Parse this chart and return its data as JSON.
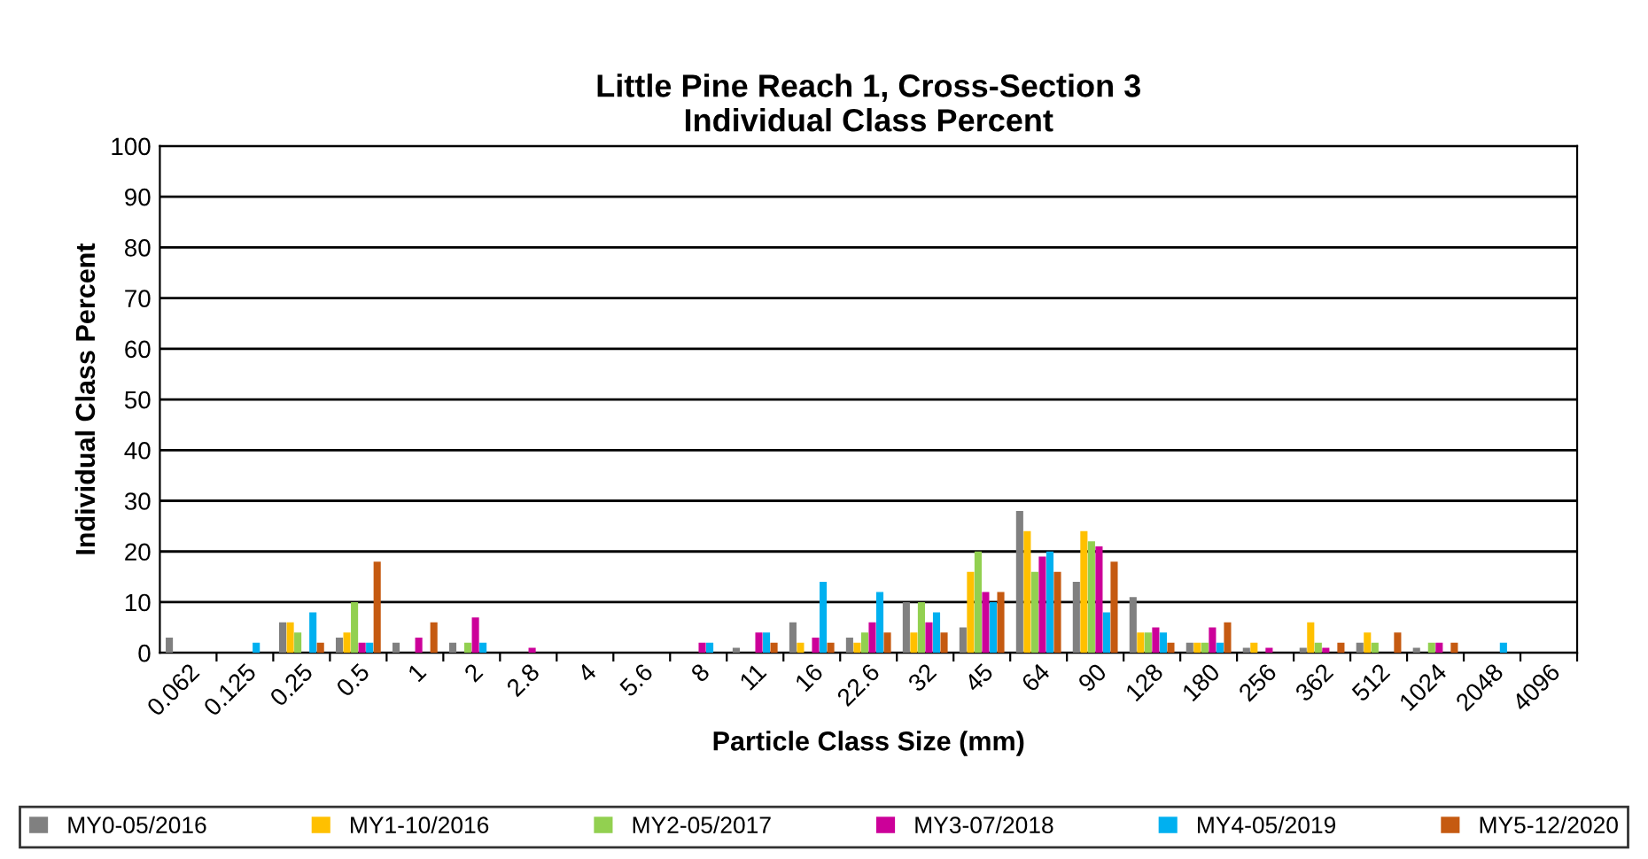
{
  "chart_data": {
    "type": "bar",
    "title": "Little Pine Reach 1, Cross-Section 3\nIndividual Class Percent",
    "xlabel": "Particle Class Size (mm)",
    "ylabel": "Individual Class Percent",
    "categories": [
      "0.062",
      "0.125",
      "0.25",
      "0.5",
      "1",
      "2",
      "2.8",
      "4",
      "5.6",
      "8",
      "11",
      "16",
      "22.6",
      "32",
      "45",
      "64",
      "90",
      "128",
      "180",
      "256",
      "362",
      "512",
      "1024",
      "2048",
      "4096"
    ],
    "series": [
      {
        "name": "MY0-05/2016",
        "color": "#808080",
        "values": [
          3,
          0,
          6,
          3,
          2,
          2,
          0,
          0,
          0,
          0,
          1,
          6,
          3,
          10,
          5,
          28,
          14,
          11,
          2,
          1,
          1,
          2,
          1,
          0,
          0
        ]
      },
      {
        "name": "MY1-10/2016",
        "color": "#ffc000",
        "values": [
          0,
          0,
          6,
          4,
          0,
          0,
          0,
          0,
          0,
          0,
          0,
          2,
          2,
          4,
          16,
          24,
          24,
          4,
          2,
          2,
          6,
          4,
          0,
          0,
          0
        ]
      },
      {
        "name": "MY2-05/2017",
        "color": "#92d050",
        "values": [
          0,
          0,
          4,
          10,
          0,
          2,
          0,
          0,
          0,
          0,
          0,
          0,
          4,
          10,
          20,
          16,
          22,
          4,
          2,
          0,
          2,
          2,
          2,
          0,
          0
        ]
      },
      {
        "name": "MY3-07/2018",
        "color": "#cc0099",
        "values": [
          0,
          0,
          0,
          2,
          3,
          7,
          1,
          0,
          0,
          2,
          4,
          3,
          6,
          6,
          12,
          19,
          21,
          5,
          5,
          1,
          1,
          0,
          2,
          0,
          0
        ]
      },
      {
        "name": "MY4-05/2019",
        "color": "#00b0f0",
        "values": [
          0,
          2,
          8,
          2,
          0,
          2,
          0,
          0,
          0,
          2,
          4,
          14,
          12,
          8,
          10,
          20,
          8,
          4,
          2,
          0,
          0,
          0,
          0,
          2,
          0
        ]
      },
      {
        "name": "MY5-12/2020",
        "color": "#c55a11",
        "values": [
          0,
          0,
          2,
          18,
          6,
          0,
          0,
          0,
          0,
          0,
          2,
          2,
          4,
          4,
          12,
          16,
          18,
          2,
          6,
          0,
          2,
          4,
          2,
          0,
          0
        ]
      }
    ],
    "ylim": [
      0,
      100
    ],
    "yticks": [
      0,
      10,
      20,
      30,
      40,
      50,
      60,
      70,
      80,
      90,
      100
    ],
    "grid": "y",
    "legend": "bottom"
  }
}
